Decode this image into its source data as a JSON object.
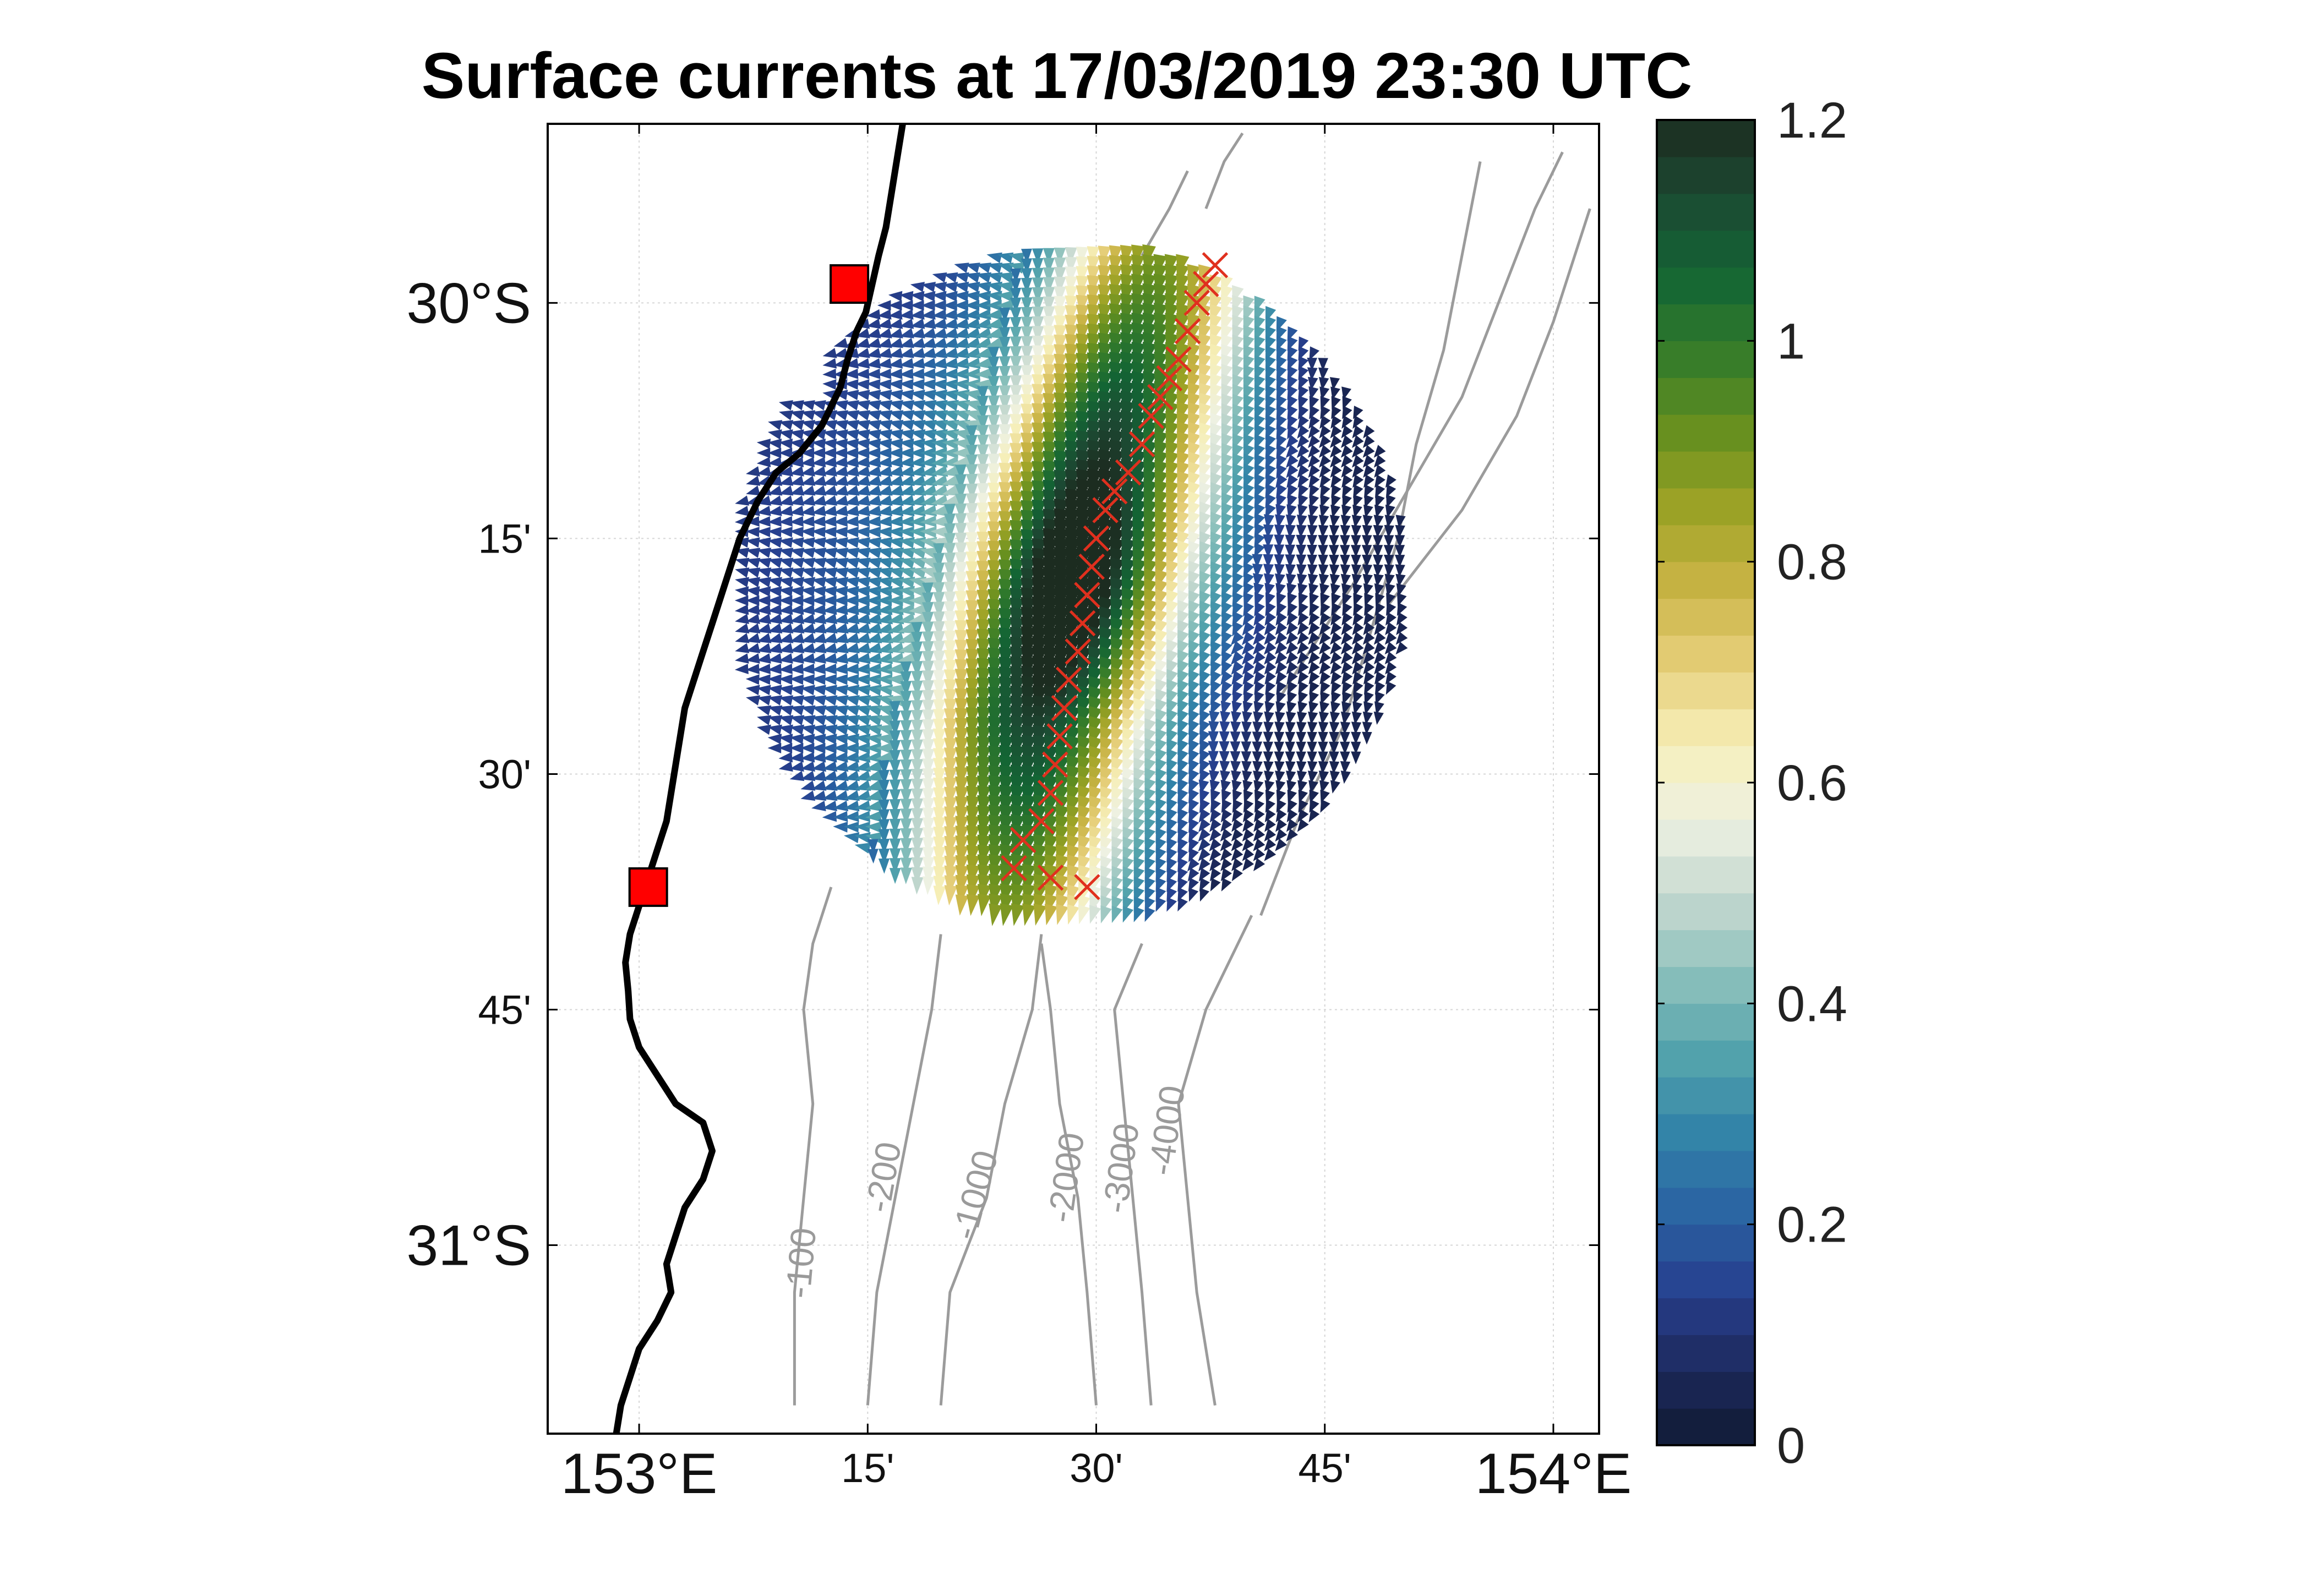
{
  "title": "Surface currents at 17/03/2019 23:30 UTC",
  "map": {
    "lon_range": [
      152.9,
      154.05
    ],
    "lat_range": [
      -31.2,
      -29.81
    ],
    "lat_ticks": [
      {
        "value": -30.0,
        "label": "30°S",
        "style": "deg"
      },
      {
        "value": -30.25,
        "label": "15'",
        "style": "min"
      },
      {
        "value": -30.5,
        "label": "30'",
        "style": "min"
      },
      {
        "value": -30.75,
        "label": "45'",
        "style": "min"
      },
      {
        "value": -31.0,
        "label": "31°S",
        "style": "deg"
      }
    ],
    "lon_ticks": [
      {
        "value": 153.0,
        "label": "153°E",
        "style": "deg"
      },
      {
        "value": 153.25,
        "label": "15'",
        "style": "min"
      },
      {
        "value": 153.5,
        "label": "30'",
        "style": "min"
      },
      {
        "value": 153.75,
        "label": "45'",
        "style": "min"
      },
      {
        "value": 154.0,
        "label": "154°E",
        "style": "deg"
      }
    ],
    "grid": true,
    "stations": [
      {
        "name": "station-north",
        "lon": 153.23,
        "lat": -29.98
      },
      {
        "name": "station-south",
        "lon": 153.01,
        "lat": -30.62
      }
    ],
    "coastline": [
      [
        153.29,
        -29.8
      ],
      [
        153.285,
        -29.83
      ],
      [
        153.28,
        -29.86
      ],
      [
        153.275,
        -29.89
      ],
      [
        153.27,
        -29.92
      ],
      [
        153.262,
        -29.95
      ],
      [
        153.255,
        -29.98
      ],
      [
        153.248,
        -30.01
      ],
      [
        153.238,
        -30.03
      ],
      [
        153.228,
        -30.06
      ],
      [
        153.22,
        -30.09
      ],
      [
        153.2,
        -30.13
      ],
      [
        153.175,
        -30.16
      ],
      [
        153.15,
        -30.18
      ],
      [
        153.13,
        -30.21
      ],
      [
        153.11,
        -30.25
      ],
      [
        153.1,
        -30.28
      ],
      [
        153.09,
        -30.31
      ],
      [
        153.08,
        -30.34
      ],
      [
        153.07,
        -30.37
      ],
      [
        153.06,
        -30.4
      ],
      [
        153.05,
        -30.43
      ],
      [
        153.045,
        -30.46
      ],
      [
        153.04,
        -30.49
      ],
      [
        153.035,
        -30.52
      ],
      [
        153.03,
        -30.55
      ],
      [
        153.02,
        -30.58
      ],
      [
        153.01,
        -30.61
      ],
      [
        153.0,
        -30.64
      ],
      [
        152.99,
        -30.67
      ],
      [
        152.985,
        -30.7
      ],
      [
        152.988,
        -30.73
      ],
      [
        152.99,
        -30.76
      ],
      [
        153.0,
        -30.79
      ],
      [
        153.02,
        -30.82
      ],
      [
        153.04,
        -30.85
      ],
      [
        153.07,
        -30.87
      ],
      [
        153.08,
        -30.9
      ],
      [
        153.07,
        -30.93
      ],
      [
        153.05,
        -30.96
      ],
      [
        153.04,
        -30.99
      ],
      [
        153.03,
        -31.02
      ],
      [
        153.035,
        -31.05
      ],
      [
        153.02,
        -31.08
      ],
      [
        153.0,
        -31.11
      ],
      [
        152.99,
        -31.14
      ],
      [
        152.98,
        -31.17
      ],
      [
        152.975,
        -31.2
      ]
    ],
    "contours": [
      {
        "level": -100,
        "label": "-100",
        "points": [
          [
            153.17,
            -31.17
          ],
          [
            153.17,
            -31.05
          ],
          [
            153.18,
            -30.95
          ],
          [
            153.19,
            -30.85
          ],
          [
            153.18,
            -30.75
          ],
          [
            153.19,
            -30.68
          ],
          [
            153.21,
            -30.62
          ]
        ],
        "label_at": [
          153.19,
          -31.02
        ],
        "label_angle": -85
      },
      {
        "level": -200,
        "label": "-200",
        "points": [
          [
            153.25,
            -31.17
          ],
          [
            153.26,
            -31.05
          ],
          [
            153.28,
            -30.95
          ],
          [
            153.3,
            -30.85
          ],
          [
            153.32,
            -30.75
          ],
          [
            153.33,
            -30.67
          ]
        ],
        "label_at": [
          153.28,
          -30.93
        ],
        "label_angle": -80
      },
      {
        "level": -1000,
        "label": "-1000",
        "points": [
          [
            153.33,
            -31.17
          ],
          [
            153.34,
            -31.05
          ],
          [
            153.38,
            -30.95
          ],
          [
            153.4,
            -30.85
          ],
          [
            153.43,
            -30.75
          ],
          [
            153.44,
            -30.67
          ]
        ],
        "label_at": [
          153.38,
          -30.95
        ],
        "label_angle": -75
      },
      {
        "level": -2000,
        "label": "-2000",
        "points": [
          [
            153.5,
            -31.17
          ],
          [
            153.49,
            -31.05
          ],
          [
            153.48,
            -30.95
          ],
          [
            153.46,
            -30.85
          ],
          [
            153.45,
            -30.75
          ],
          [
            153.44,
            -30.68
          ]
        ],
        "label_at": [
          153.48,
          -30.93
        ],
        "label_angle": -82
      },
      {
        "level": -3000,
        "label": "-3000",
        "points": [
          [
            153.56,
            -31.17
          ],
          [
            153.55,
            -31.05
          ],
          [
            153.54,
            -30.95
          ],
          [
            153.53,
            -30.85
          ],
          [
            153.52,
            -30.75
          ],
          [
            153.55,
            -30.68
          ]
        ],
        "label_at": [
          153.54,
          -30.92
        ],
        "label_angle": -82
      },
      {
        "level": -4000,
        "label": "-4000",
        "points": [
          [
            153.63,
            -31.17
          ],
          [
            153.61,
            -31.05
          ],
          [
            153.6,
            -30.95
          ],
          [
            153.59,
            -30.85
          ],
          [
            153.62,
            -30.75
          ],
          [
            153.67,
            -30.65
          ]
        ],
        "label_at": [
          153.59,
          -30.88
        ],
        "label_angle": -82
      },
      {
        "level": -4000,
        "label": "",
        "points": [
          [
            153.68,
            -30.65
          ],
          [
            153.72,
            -30.55
          ],
          [
            153.77,
            -30.45
          ],
          [
            153.8,
            -30.35
          ],
          [
            153.83,
            -30.25
          ],
          [
            153.85,
            -30.15
          ],
          [
            153.88,
            -30.05
          ],
          [
            153.9,
            -29.95
          ],
          [
            153.92,
            -29.85
          ]
        ],
        "label_at": null,
        "label_angle": 0
      },
      {
        "level": -4500,
        "label": "",
        "points": [
          [
            153.7,
            -30.42
          ],
          [
            153.78,
            -30.3
          ],
          [
            153.84,
            -30.2
          ],
          [
            153.9,
            -30.1
          ],
          [
            153.94,
            -30.0
          ],
          [
            153.98,
            -29.9
          ],
          [
            154.01,
            -29.84
          ]
        ],
        "label_at": null,
        "label_angle": 0
      },
      {
        "level": -5000,
        "label": "",
        "points": [
          [
            153.82,
            -30.32
          ],
          [
            153.9,
            -30.22
          ],
          [
            153.96,
            -30.12
          ],
          [
            154.0,
            -30.02
          ],
          [
            154.04,
            -29.9
          ]
        ],
        "label_at": null,
        "label_angle": 0
      },
      {
        "level": -3000,
        "label": "",
        "points": [
          [
            153.62,
            -29.9
          ],
          [
            153.64,
            -29.85
          ],
          [
            153.66,
            -29.82
          ]
        ],
        "label_at": null,
        "label_angle": 0
      },
      {
        "level": -2000,
        "label": "",
        "points": [
          [
            153.55,
            -29.95
          ],
          [
            153.58,
            -29.9
          ],
          [
            153.6,
            -29.86
          ]
        ],
        "label_at": null,
        "label_angle": 0
      }
    ],
    "track_points": [
      [
        153.63,
        -29.96
      ],
      [
        153.62,
        -29.98
      ],
      [
        153.61,
        -30.0
      ],
      [
        153.6,
        -30.03
      ],
      [
        153.59,
        -30.06
      ],
      [
        153.58,
        -30.08
      ],
      [
        153.57,
        -30.1
      ],
      [
        153.56,
        -30.12
      ],
      [
        153.55,
        -30.15
      ],
      [
        153.535,
        -30.18
      ],
      [
        153.52,
        -30.2
      ],
      [
        153.51,
        -30.22
      ],
      [
        153.5,
        -30.25
      ],
      [
        153.495,
        -30.28
      ],
      [
        153.49,
        -30.31
      ],
      [
        153.485,
        -30.34
      ],
      [
        153.48,
        -30.37
      ],
      [
        153.47,
        -30.4
      ],
      [
        153.465,
        -30.43
      ],
      [
        153.46,
        -30.46
      ],
      [
        153.455,
        -30.49
      ],
      [
        153.45,
        -30.52
      ],
      [
        153.44,
        -30.55
      ],
      [
        153.42,
        -30.57
      ],
      [
        153.41,
        -30.6
      ],
      [
        153.45,
        -30.61
      ],
      [
        153.49,
        -30.62
      ]
    ],
    "current_field": {
      "center_lon": 153.47,
      "center_lat": -30.3,
      "radius_lon": 0.37,
      "radius_lat": 0.36,
      "jet_axis": [
        [
          153.58,
          -29.92
        ],
        [
          153.5,
          -30.2
        ],
        [
          153.43,
          -30.45
        ],
        [
          153.4,
          -30.65
        ]
      ],
      "jet_width_lon": 0.13,
      "max_speed": 1.18
    }
  },
  "colorbar": {
    "min": 0,
    "max": 1.2,
    "tick_values": [
      0,
      0.2,
      0.4,
      0.6,
      0.8,
      1,
      1.2
    ],
    "tick_labels": [
      "0",
      "0.2",
      "0.4",
      "0.6",
      "0.8",
      "1",
      "1.2"
    ],
    "stops": [
      "#101a33",
      "#1d2a5e",
      "#27408f",
      "#2a64a3",
      "#3384a8",
      "#53a3ac",
      "#8ac0bb",
      "#c4d8cf",
      "#eef1e2",
      "#f6efb8",
      "#e6cf7a",
      "#c9b445",
      "#9da326",
      "#67901f",
      "#357c2a",
      "#136534",
      "#1c4a33",
      "#1c2c20"
    ]
  }
}
